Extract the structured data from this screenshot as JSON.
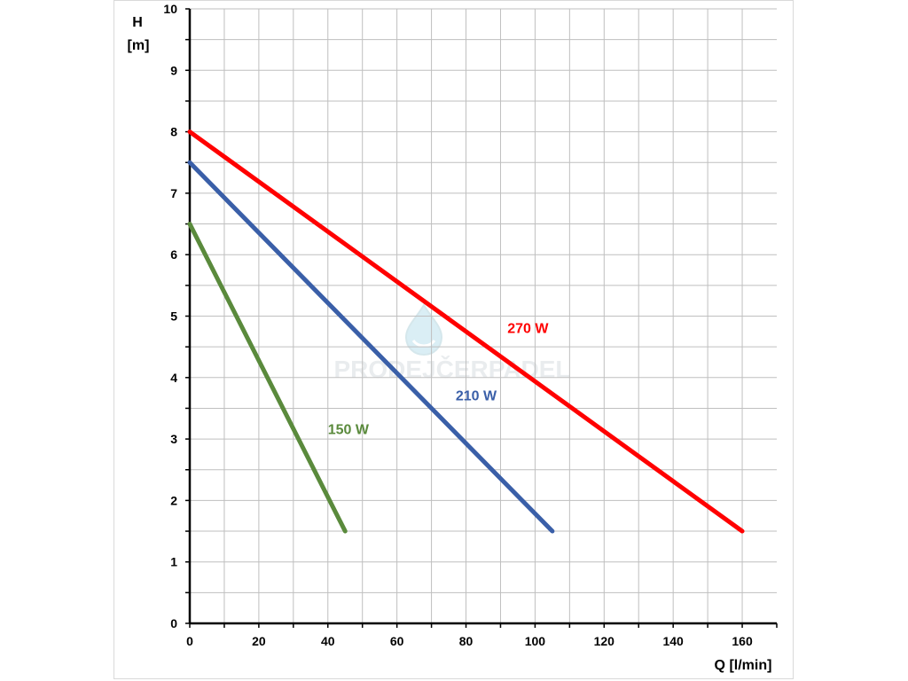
{
  "chart_data": {
    "type": "line",
    "title": "",
    "ylabel_top": "H",
    "ylabel_unit": "[m]",
    "xlabel": "Q [l/min]",
    "xlim": [
      0,
      170
    ],
    "ylim": [
      0,
      10
    ],
    "x_ticks": [
      0,
      20,
      40,
      60,
      80,
      100,
      120,
      140,
      160
    ],
    "y_ticks": [
      0,
      1,
      2,
      3,
      4,
      5,
      6,
      7,
      8,
      9,
      10
    ],
    "grid": true,
    "series": [
      {
        "name": "270 W",
        "color": "#ff0000",
        "points": [
          [
            0,
            8
          ],
          [
            160,
            1.5
          ]
        ]
      },
      {
        "name": "210 W",
        "color": "#3a5fa8",
        "points": [
          [
            0,
            7.5
          ],
          [
            105,
            1.5
          ]
        ]
      },
      {
        "name": "150 W",
        "color": "#5a8a3c",
        "points": [
          [
            0,
            6.5
          ],
          [
            45,
            1.5
          ]
        ]
      }
    ],
    "series_labels": [
      {
        "text": "270 W",
        "color": "#ff0000",
        "x": 92,
        "y": 4.8
      },
      {
        "text": "210 W",
        "color": "#3a5fa8",
        "x": 77,
        "y": 3.7
      },
      {
        "text": "150 W",
        "color": "#5a8a3c",
        "x": 40,
        "y": 3.15
      }
    ],
    "watermark": "PRODEJČERPADEL"
  }
}
